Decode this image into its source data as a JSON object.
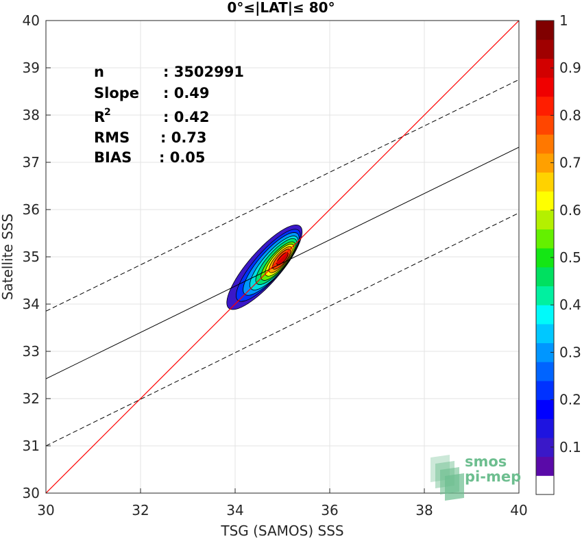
{
  "chart_data": {
    "type": "contour",
    "title": "0°≤|LAT|≤ 80°",
    "xlabel": "TSG (SAMOS) SSS",
    "ylabel": "Satellite SSS",
    "xlim": [
      30,
      40
    ],
    "ylim": [
      30,
      40
    ],
    "xticks": [
      30,
      32,
      34,
      36,
      38,
      40
    ],
    "yticks": [
      30,
      31,
      32,
      33,
      34,
      35,
      36,
      37,
      38,
      39,
      40
    ],
    "grid": true,
    "stats": [
      {
        "label": "n",
        "value": ": 3502991"
      },
      {
        "label": "Slope",
        "value": ": 0.49"
      },
      {
        "label": "R",
        "sup": "2",
        "value": ": 0.42"
      },
      {
        "label": "RMS",
        "value": ": 0.73"
      },
      {
        "label": "BIAS",
        "value": ": 0.05"
      }
    ],
    "identity_line": {
      "color": "#ff0000",
      "points": [
        [
          30,
          30
        ],
        [
          40,
          40
        ]
      ]
    },
    "regression_line": {
      "color": "#000000",
      "slope": 0.49,
      "points": [
        [
          30,
          32.42
        ],
        [
          40,
          37.32
        ]
      ]
    },
    "envelope_lines": [
      {
        "style": "dashed",
        "points": [
          [
            30,
            33.85
          ],
          [
            40,
            38.75
          ]
        ]
      },
      {
        "style": "dashed",
        "points": [
          [
            30,
            31.0
          ],
          [
            40,
            35.93
          ]
        ]
      }
    ],
    "density_center": [
      35.0,
      34.95
    ],
    "colorbar": {
      "ticks": [
        0.1,
        0.2,
        0.3,
        0.4,
        0.5,
        0.6,
        0.7,
        0.8,
        0.9,
        1
      ],
      "tick_labels": [
        "0.1",
        "0.2",
        "0.3",
        "0.4",
        "0.5",
        "0.6",
        "0.7",
        "0.8",
        "0.9",
        "1"
      ],
      "range": [
        0,
        1
      ],
      "bin_width": 0.05,
      "colors": [
        "#ffffff",
        "#5a0aa8",
        "#3a18c8",
        "#1e14e0",
        "#0000ff",
        "#0032ff",
        "#0064ff",
        "#0096ff",
        "#00c8ff",
        "#00fafa",
        "#00f0a0",
        "#00e060",
        "#14e614",
        "#64f000",
        "#b4f000",
        "#ffff00",
        "#ffd200",
        "#ffa000",
        "#ff7800",
        "#ff4600",
        "#ff1e00",
        "#f00000",
        "#d20000",
        "#a00000",
        "#800000"
      ]
    },
    "contour_levels": [
      {
        "level": 0.05,
        "color": "#3a18c8",
        "rx": 1.15,
        "ry": 0.34,
        "cx": 34.62,
        "cy": 34.78,
        "angle": 49
      },
      {
        "level": 0.15,
        "color": "#0032ff",
        "rx": 0.98,
        "ry": 0.29,
        "cx": 34.7,
        "cy": 34.82,
        "angle": 49
      },
      {
        "level": 0.25,
        "color": "#0096ff",
        "rx": 0.85,
        "ry": 0.26,
        "cx": 34.76,
        "cy": 34.85,
        "angle": 49
      },
      {
        "level": 0.35,
        "color": "#00e0e0",
        "rx": 0.73,
        "ry": 0.23,
        "cx": 34.82,
        "cy": 34.87,
        "angle": 49
      },
      {
        "level": 0.45,
        "color": "#00e070",
        "rx": 0.62,
        "ry": 0.2,
        "cx": 34.87,
        "cy": 34.9,
        "angle": 49
      },
      {
        "level": 0.55,
        "color": "#64f000",
        "rx": 0.52,
        "ry": 0.17,
        "cx": 34.91,
        "cy": 34.91,
        "angle": 49
      },
      {
        "level": 0.65,
        "color": "#ffff00",
        "rx": 0.43,
        "ry": 0.145,
        "cx": 34.94,
        "cy": 34.93,
        "angle": 49
      },
      {
        "level": 0.75,
        "color": "#ffa000",
        "rx": 0.35,
        "ry": 0.12,
        "cx": 34.96,
        "cy": 34.94,
        "angle": 49
      },
      {
        "level": 0.85,
        "color": "#ff4600",
        "rx": 0.27,
        "ry": 0.095,
        "cx": 34.98,
        "cy": 34.95,
        "angle": 49
      },
      {
        "level": 0.95,
        "color": "#d20000",
        "rx": 0.17,
        "ry": 0.06,
        "cx": 35.0,
        "cy": 34.96,
        "angle": 49
      }
    ]
  },
  "logo": {
    "line1": "smos",
    "line2": "pi-mep",
    "color": "#6dbe8f"
  }
}
